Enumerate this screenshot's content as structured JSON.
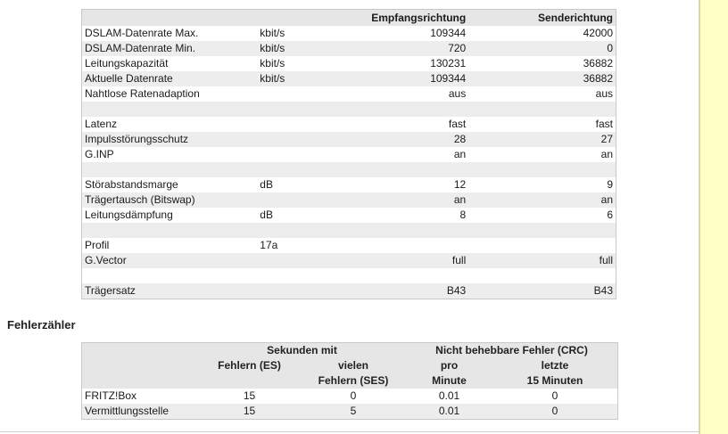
{
  "dsl_table": {
    "headers": {
      "label": "",
      "unit": "",
      "receive": "Empfangsrichtung",
      "send": "Senderichtung"
    },
    "rows": [
      {
        "label": "DSLAM-Datenrate Max.",
        "unit": "kbit/s",
        "receive": "109344",
        "send": "42000"
      },
      {
        "label": "DSLAM-Datenrate Min.",
        "unit": "kbit/s",
        "receive": "720",
        "send": "0"
      },
      {
        "label": "Leitungskapazität",
        "unit": "kbit/s",
        "receive": "130231",
        "send": "36882"
      },
      {
        "label": "Aktuelle Datenrate",
        "unit": "kbit/s",
        "receive": "109344",
        "send": "36882"
      },
      {
        "label": "Nahtlose Ratenadaption",
        "unit": "",
        "receive": "aus",
        "send": "aus"
      },
      {
        "label": "",
        "unit": "",
        "receive": "",
        "send": ""
      },
      {
        "label": "Latenz",
        "unit": "",
        "receive": "fast",
        "send": "fast"
      },
      {
        "label": "Impulsstörungsschutz",
        "unit": "",
        "receive": "28",
        "send": "27"
      },
      {
        "label": "G.INP",
        "unit": "",
        "receive": "an",
        "send": "an"
      },
      {
        "label": "",
        "unit": "",
        "receive": "",
        "send": ""
      },
      {
        "label": "Störabstandsmarge",
        "unit": "dB",
        "receive": "12",
        "send": "9"
      },
      {
        "label": "Trägertausch (Bitswap)",
        "unit": "",
        "receive": "an",
        "send": "an"
      },
      {
        "label": "Leitungsdämpfung",
        "unit": "dB",
        "receive": "8",
        "send": "6"
      },
      {
        "label": "",
        "unit": "",
        "receive": "",
        "send": ""
      },
      {
        "label": "Profil",
        "unit": "17a",
        "receive": "",
        "send": ""
      },
      {
        "label": "G.Vector",
        "unit": "",
        "receive": "full",
        "send": "full"
      },
      {
        "label": "",
        "unit": "",
        "receive": "",
        "send": ""
      },
      {
        "label": "Trägersatz",
        "unit": "",
        "receive": "B43",
        "send": "B43"
      }
    ]
  },
  "error_section": {
    "title": "Fehlerzähler",
    "group_headers": {
      "seconds_with": "Sekunden mit",
      "crc": "Nicht behebbare Fehler (CRC)"
    },
    "sub_headers": {
      "es": "Fehlern (ES)",
      "ses_line1": "vielen",
      "ses_line2": "Fehlern (SES)",
      "per_line1": "pro",
      "per_line2": "Minute",
      "last_line1": "letzte",
      "last_line2": "15 Minuten"
    },
    "rows": [
      {
        "label": "FRITZ!Box",
        "es": "15",
        "ses": "0",
        "per_minute": "0.01",
        "last_15": "0"
      },
      {
        "label": "Vermittlungsstelle",
        "es": "15",
        "ses": "5",
        "per_minute": "0.01",
        "last_15": "0"
      }
    ]
  },
  "colors": {
    "header_bg": "#e6e6e6",
    "stripe_bg": "#ededed",
    "side_strip": "#ffffc6"
  }
}
